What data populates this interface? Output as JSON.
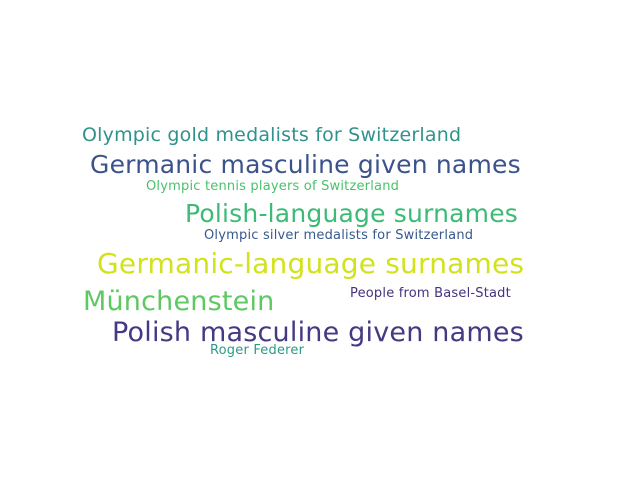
{
  "words": [
    {
      "text": "Olympic gold medalists for Switzerland",
      "color": "#31928c"
    },
    {
      "text": "Germanic masculine given names",
      "color": "#3b528b"
    },
    {
      "text": "Olympic tennis players of Switzerland",
      "color": "#4ac16d"
    },
    {
      "text": "Polish-language surnames",
      "color": "#3bbb75"
    },
    {
      "text": "Olympic silver medalists for Switzerland",
      "color": "#38598c"
    },
    {
      "text": "Germanic-language surnames",
      "color": "#d2e21b"
    },
    {
      "text": "Münchenstein",
      "color": "#5ec962"
    },
    {
      "text": "People from Basel-Stadt",
      "color": "#46327e"
    },
    {
      "text": "Polish masculine given names",
      "color": "#443983"
    },
    {
      "text": "Roger Federer",
      "color": "#2c9a8a"
    }
  ]
}
